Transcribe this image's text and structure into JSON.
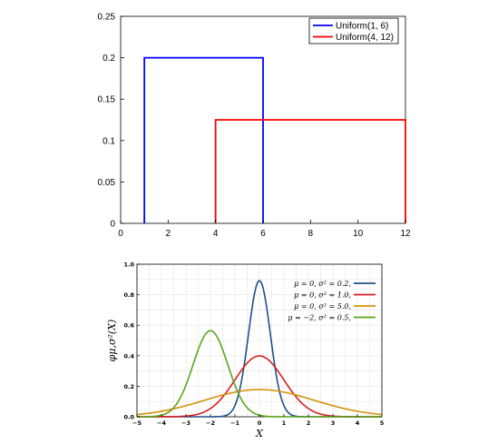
{
  "chart_data": [
    {
      "type": "line",
      "xlim": [
        0,
        12
      ],
      "ylim": [
        0,
        0.25
      ],
      "xticks": [
        "0",
        "2",
        "4",
        "6",
        "8",
        "10",
        "12"
      ],
      "yticks": [
        "0",
        "0.05",
        "0.1",
        "0.15",
        "0.2",
        "0.25"
      ],
      "legend_position": "top-right",
      "series": [
        {
          "name": "Uniform(1, 6)",
          "color": "#0000ff",
          "a": 1,
          "b": 6,
          "height": 0.2
        },
        {
          "name": "Uniform(4, 12)",
          "color": "#ff0000",
          "a": 4,
          "b": 12,
          "height": 0.125
        }
      ]
    },
    {
      "type": "line",
      "xlim": [
        -5,
        5
      ],
      "ylim": [
        0,
        1.0
      ],
      "xticks": [
        "−5",
        "−4",
        "−3",
        "−2",
        "−1",
        "0",
        "1",
        "2",
        "3",
        "4",
        "5"
      ],
      "yticks": [
        "0.0",
        "0.2",
        "0.4",
        "0.6",
        "0.8",
        "1.0"
      ],
      "xlabel": "X",
      "ylabel": "φμ,σ²(X)",
      "grid": true,
      "legend_position": "top-right",
      "series": [
        {
          "name": "μ = 0,   σ² = 0.2,",
          "mu": 0,
          "var": 0.2,
          "color": "#1f4e8c"
        },
        {
          "name": "μ = 0,   σ² = 1.0,",
          "mu": 0,
          "var": 1.0,
          "color": "#d62020"
        },
        {
          "name": "μ = 0,   σ² = 5.0,",
          "mu": 0,
          "var": 5.0,
          "color": "#d4920a"
        },
        {
          "name": "μ = −2,  σ² = 0.5,",
          "mu": -2,
          "var": 0.5,
          "color": "#5aa51a"
        }
      ]
    }
  ]
}
